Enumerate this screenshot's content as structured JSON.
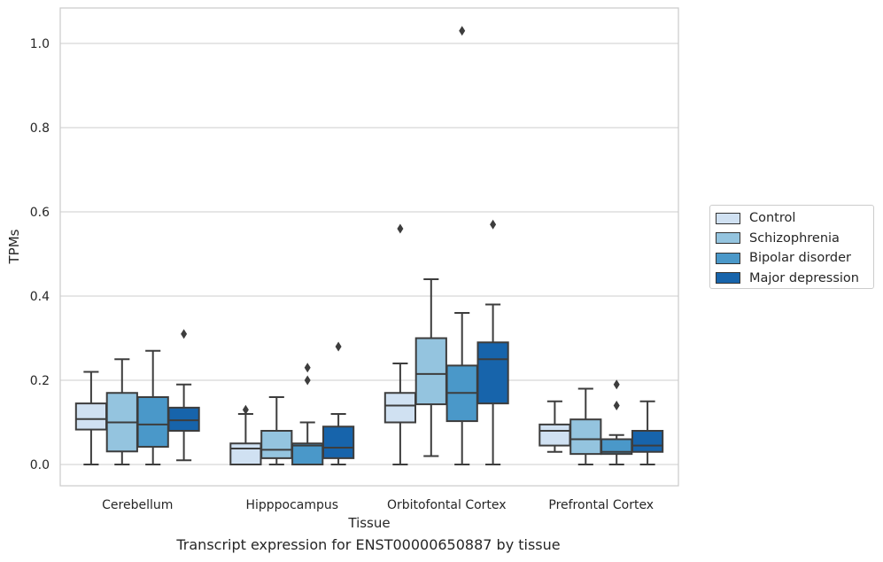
{
  "chart_data": {
    "type": "box",
    "title": "",
    "caption": "Transcript expression for ENST00000650887 by tissue",
    "xlabel": "Tissue",
    "ylabel": "TPMs",
    "ylim": [
      -0.05,
      1.08
    ],
    "yticks": [
      "0.0",
      "0.2",
      "0.4",
      "0.6",
      "0.8",
      "1.0"
    ],
    "grid": true,
    "legend_position": "right",
    "categories": [
      "Cerebellum",
      "Hipppocampus",
      "Orbitofontal Cortex",
      "Prefrontal Cortex"
    ],
    "series": [
      {
        "name": "Control",
        "color": "#d0e1f2",
        "boxes": [
          {
            "whislo": 0.0,
            "q1": 0.083,
            "med": 0.108,
            "q3": 0.145,
            "whishi": 0.22,
            "fliers": []
          },
          {
            "whislo": 0.0,
            "q1": 0.0,
            "med": 0.038,
            "q3": 0.05,
            "whishi": 0.12,
            "fliers": [
              0.13
            ]
          },
          {
            "whislo": 0.0,
            "q1": 0.1,
            "med": 0.14,
            "q3": 0.17,
            "whishi": 0.24,
            "fliers": [
              0.56
            ]
          },
          {
            "whislo": 0.03,
            "q1": 0.045,
            "med": 0.08,
            "q3": 0.095,
            "whishi": 0.15,
            "fliers": []
          }
        ]
      },
      {
        "name": "Schizophrenia",
        "color": "#94c4df",
        "boxes": [
          {
            "whislo": 0.0,
            "q1": 0.031,
            "med": 0.1,
            "q3": 0.17,
            "whishi": 0.25,
            "fliers": []
          },
          {
            "whislo": 0.0,
            "q1": 0.015,
            "med": 0.035,
            "q3": 0.08,
            "whishi": 0.16,
            "fliers": []
          },
          {
            "whislo": 0.02,
            "q1": 0.143,
            "med": 0.215,
            "q3": 0.3,
            "whishi": 0.44,
            "fliers": []
          },
          {
            "whislo": 0.0,
            "q1": 0.025,
            "med": 0.06,
            "q3": 0.107,
            "whishi": 0.18,
            "fliers": []
          }
        ]
      },
      {
        "name": "Bipolar disorder",
        "color": "#4a98c9",
        "boxes": [
          {
            "whislo": 0.0,
            "q1": 0.042,
            "med": 0.095,
            "q3": 0.16,
            "whishi": 0.27,
            "fliers": []
          },
          {
            "whislo": 0.0,
            "q1": 0.0,
            "med": 0.045,
            "q3": 0.05,
            "whishi": 0.1,
            "fliers": [
              0.2,
              0.23
            ]
          },
          {
            "whislo": 0.0,
            "q1": 0.103,
            "med": 0.17,
            "q3": 0.235,
            "whishi": 0.36,
            "fliers": [
              1.03
            ]
          },
          {
            "whislo": 0.0,
            "q1": 0.025,
            "med": 0.03,
            "q3": 0.06,
            "whishi": 0.07,
            "fliers": [
              0.14,
              0.19
            ]
          }
        ]
      },
      {
        "name": "Major depression",
        "color": "#1764ab",
        "boxes": [
          {
            "whislo": 0.01,
            "q1": 0.08,
            "med": 0.105,
            "q3": 0.135,
            "whishi": 0.19,
            "fliers": [
              0.31
            ]
          },
          {
            "whislo": 0.0,
            "q1": 0.015,
            "med": 0.04,
            "q3": 0.09,
            "whishi": 0.12,
            "fliers": [
              0.28
            ]
          },
          {
            "whislo": 0.0,
            "q1": 0.145,
            "med": 0.25,
            "q3": 0.29,
            "whishi": 0.38,
            "fliers": [
              0.57
            ]
          },
          {
            "whislo": 0.0,
            "q1": 0.03,
            "med": 0.045,
            "q3": 0.08,
            "whishi": 0.15,
            "fliers": []
          }
        ]
      }
    ]
  }
}
